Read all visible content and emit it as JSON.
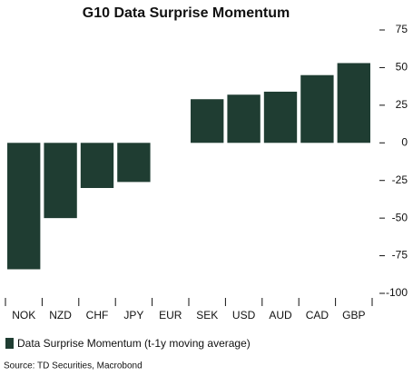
{
  "chart_data": {
    "type": "bar",
    "title": "G10 Data Surprise Momentum",
    "categories": [
      "NOK",
      "NZD",
      "CHF",
      "JPY",
      "EUR",
      "SEK",
      "USD",
      "AUD",
      "CAD",
      "GBP"
    ],
    "series": [
      {
        "name": "Data Surprise Momentum (t-1y moving average)",
        "color": "#1f3d32",
        "values": [
          -84,
          -50,
          -30,
          -26,
          0,
          29,
          32,
          34,
          45,
          53
        ]
      }
    ],
    "ylim": [
      -100,
      75
    ],
    "yticks": [
      -100,
      -75,
      -50,
      -25,
      0,
      25,
      50,
      75
    ],
    "source": "Source: TD Securities, Macrobond"
  }
}
